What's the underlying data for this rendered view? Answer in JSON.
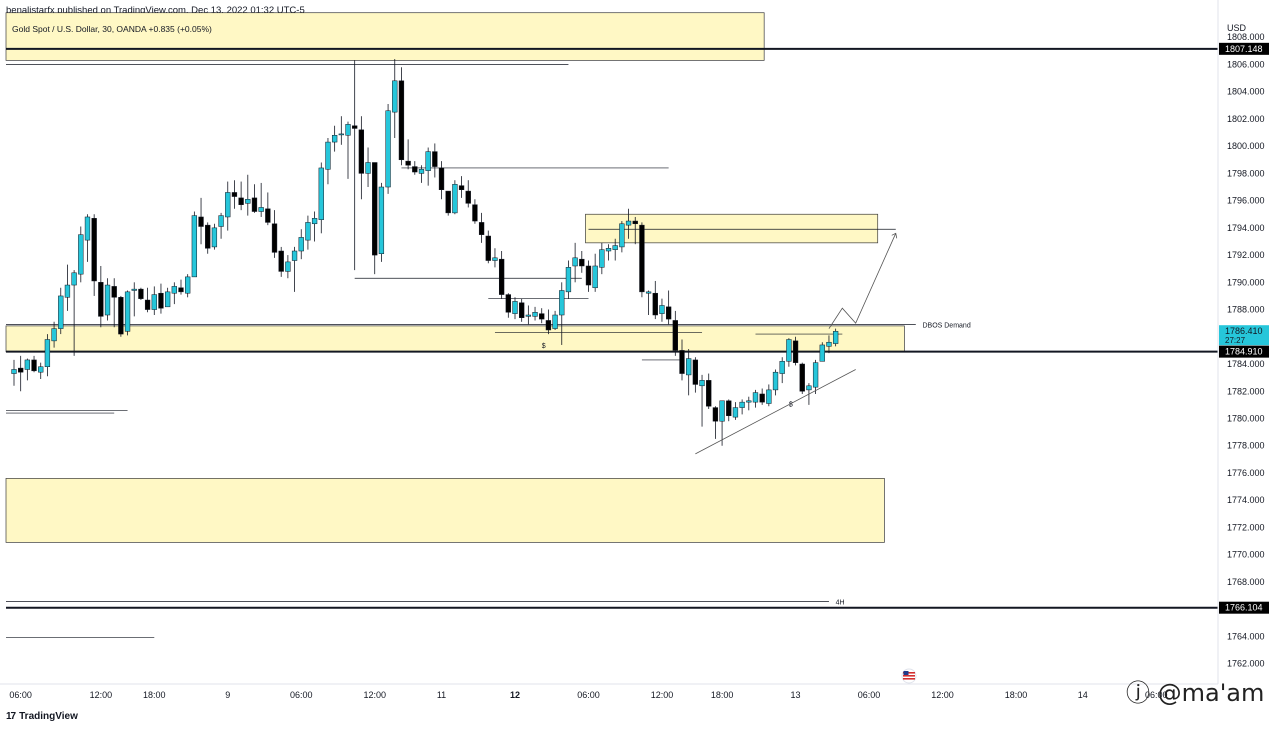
{
  "header": {
    "published_text": "benalistarfx published on TradingView.com, Dec 13, 2022 01:32 UTC-5"
  },
  "footer": {
    "logo_glyph": "17",
    "brand": "TradingView",
    "watermark": "ⓙ @ma'am",
    "flag_icon": "us-flag-icon"
  },
  "chart_data": {
    "type": "candlestick",
    "title": "Gold Spot / U.S. Dollar, 30, OANDA  +0.835 (+0.05%)",
    "currency": "USD",
    "ylim": [
      1760.5,
      1810.0
    ],
    "y_ticks": [
      "1808.000",
      "1806.000",
      "1804.000",
      "1802.000",
      "1800.000",
      "1798.000",
      "1796.000",
      "1794.000",
      "1792.000",
      "1790.000",
      "1788.000",
      "1786.000",
      "1784.000",
      "1782.000",
      "1780.000",
      "1778.000",
      "1776.000",
      "1774.000",
      "1772.000",
      "1770.000",
      "1768.000",
      "1766.000",
      "1764.000",
      "1762.000"
    ],
    "x_ticks": [
      {
        "label": "06:00",
        "i": 1,
        "bold": false
      },
      {
        "label": "12:00",
        "i": 13,
        "bold": false
      },
      {
        "label": "18:00",
        "i": 21,
        "bold": false
      },
      {
        "label": "9",
        "i": 32,
        "bold": false
      },
      {
        "label": "06:00",
        "i": 43,
        "bold": false
      },
      {
        "label": "12:00",
        "i": 54,
        "bold": false
      },
      {
        "label": "11",
        "i": 64,
        "bold": false
      },
      {
        "label": "12",
        "i": 75,
        "bold": true
      },
      {
        "label": "06:00",
        "i": 86,
        "bold": false
      },
      {
        "label": "12:00",
        "i": 97,
        "bold": false
      },
      {
        "label": "18:00",
        "i": 106,
        "bold": false
      },
      {
        "label": "13",
        "i": 117,
        "bold": false
      },
      {
        "label": "06:00",
        "i": 128,
        "bold": false
      },
      {
        "label": "12:00",
        "i": 139,
        "bold": false
      },
      {
        "label": "18:00",
        "i": 150,
        "bold": false
      },
      {
        "label": "14",
        "i": 160,
        "bold": false
      },
      {
        "label": "06:00",
        "i": 171,
        "bold": false
      }
    ],
    "price_labels": [
      {
        "label": "1807.148",
        "price": 1807.148,
        "style": "black"
      },
      {
        "label": "1786.410",
        "price": 1786.41,
        "style": "cyan",
        "sub": "27:27"
      },
      {
        "label": "1784.910",
        "price": 1784.91,
        "style": "black"
      },
      {
        "label": "1766.104",
        "price": 1766.104,
        "style": "black"
      }
    ],
    "zones": [
      {
        "name": "supply-zone-top",
        "i0": 0,
        "i1": 112,
        "top": 1809.8,
        "bottom": 1806.3
      },
      {
        "name": "supply-zone-mid",
        "i0": 86,
        "i1": 129,
        "top": 1795.0,
        "bottom": 1792.9
      },
      {
        "name": "dbos-demand-zone",
        "i0": 0,
        "i1": 133,
        "top": 1786.8,
        "bottom": 1784.9
      },
      {
        "name": "demand-zone-low",
        "i0": 0,
        "i1": 130,
        "top": 1775.6,
        "bottom": 1770.9
      }
    ],
    "horizontal_lines": [
      {
        "name": "level-1807",
        "price": 1807.148,
        "i0": 0,
        "i1": 176,
        "width": 2
      },
      {
        "name": "level-1784",
        "price": 1784.91,
        "i0": 0,
        "i1": 176,
        "width": 2
      },
      {
        "name": "level-1766",
        "price": 1766.104,
        "i0": 0,
        "i1": 176,
        "width": 2
      },
      {
        "name": "level-4h",
        "price": 1766.55,
        "i0": 0,
        "i1": 122,
        "width": 0.8
      },
      {
        "name": "dbos-line",
        "price": 1786.9,
        "i0": 0,
        "i1": 135,
        "width": 0.7
      },
      {
        "name": "line-1806",
        "price": 1806.0,
        "i0": 0,
        "i1": 83,
        "width": 0.7
      },
      {
        "name": "line-1798",
        "price": 1798.4,
        "i0": 58,
        "i1": 98,
        "width": 0.7
      },
      {
        "name": "line-1793",
        "price": 1793.9,
        "i0": 86,
        "i1": 132,
        "width": 0.7
      },
      {
        "name": "line-1791",
        "price": 1790.3,
        "i0": 51,
        "i1": 85,
        "width": 0.7
      },
      {
        "name": "line-1789",
        "price": 1788.8,
        "i0": 71,
        "i1": 86,
        "width": 0.7
      },
      {
        "name": "line-1787",
        "price": 1786.3,
        "i0": 72,
        "i1": 103,
        "width": 0.7
      },
      {
        "name": "line-1784",
        "price": 1784.3,
        "i0": 94,
        "i1": 100,
        "width": 0.7
      },
      {
        "name": "line-1786b",
        "price": 1786.2,
        "i0": 111,
        "i1": 124,
        "width": 0.7
      },
      {
        "name": "line-1781a",
        "price": 1780.6,
        "i0": 0,
        "i1": 17,
        "width": 0.7
      },
      {
        "name": "line-1781b",
        "price": 1780.4,
        "i0": 0,
        "i1": 15,
        "width": 0.7
      },
      {
        "name": "line-1763",
        "price": 1763.9,
        "i0": 0,
        "i1": 21,
        "width": 0.7
      }
    ],
    "annotations": [
      {
        "text": "DBOS Demand",
        "i": 136,
        "price": 1786.9
      },
      {
        "text": "4H",
        "i": 123,
        "price": 1766.55
      },
      {
        "text": "$",
        "i": 79,
        "price": 1785.4
      },
      {
        "text": "$",
        "i": 116,
        "price": 1781.1
      }
    ],
    "candles": [
      [
        1783.3,
        1784.3,
        1782.4,
        1783.6
      ],
      [
        1783.7,
        1784.6,
        1782.0,
        1783.4
      ],
      [
        1783.6,
        1784.4,
        1782.8,
        1784.3
      ],
      [
        1784.3,
        1784.6,
        1783.4,
        1783.5
      ],
      [
        1783.4,
        1784.1,
        1782.9,
        1783.8
      ],
      [
        1783.8,
        1786.2,
        1783.1,
        1785.8
      ],
      [
        1785.7,
        1787.1,
        1785.2,
        1786.6
      ],
      [
        1786.6,
        1789.6,
        1786.2,
        1789.0
      ],
      [
        1788.9,
        1791.3,
        1787.9,
        1789.8
      ],
      [
        1789.8,
        1790.9,
        1784.6,
        1790.7
      ],
      [
        1790.6,
        1794.1,
        1790.0,
        1793.5
      ],
      [
        1793.1,
        1795.0,
        1791.5,
        1794.8
      ],
      [
        1794.7,
        1795.0,
        1789.0,
        1790.1
      ],
      [
        1790.0,
        1791.2,
        1786.7,
        1787.5
      ],
      [
        1787.6,
        1790.3,
        1787.2,
        1789.8
      ],
      [
        1789.7,
        1790.3,
        1786.7,
        1788.9
      ],
      [
        1788.9,
        1789.0,
        1786.0,
        1786.2
      ],
      [
        1786.4,
        1789.4,
        1786.1,
        1789.3
      ],
      [
        1789.4,
        1790.0,
        1787.5,
        1789.5
      ],
      [
        1789.5,
        1789.6,
        1788.7,
        1788.8
      ],
      [
        1788.7,
        1789.6,
        1787.8,
        1788.0
      ],
      [
        1788.0,
        1789.7,
        1787.6,
        1789.1
      ],
      [
        1789.2,
        1789.9,
        1787.7,
        1788.1
      ],
      [
        1788.2,
        1789.6,
        1788.2,
        1789.3
      ],
      [
        1789.2,
        1790.0,
        1788.4,
        1789.7
      ],
      [
        1789.6,
        1790.2,
        1789.1,
        1789.3
      ],
      [
        1789.2,
        1790.6,
        1788.9,
        1790.4
      ],
      [
        1790.4,
        1795.2,
        1790.4,
        1794.9
      ],
      [
        1794.8,
        1796.2,
        1792.8,
        1794.1
      ],
      [
        1794.2,
        1794.4,
        1792.1,
        1792.5
      ],
      [
        1792.6,
        1794.3,
        1792.4,
        1794.0
      ],
      [
        1794.1,
        1795.1,
        1793.2,
        1794.9
      ],
      [
        1794.8,
        1797.4,
        1793.8,
        1796.6
      ],
      [
        1796.6,
        1797.5,
        1795.4,
        1796.3
      ],
      [
        1796.2,
        1797.4,
        1795.3,
        1795.7
      ],
      [
        1795.8,
        1797.9,
        1794.9,
        1796.1
      ],
      [
        1796.2,
        1797.2,
        1795.1,
        1795.2
      ],
      [
        1795.2,
        1797.3,
        1794.8,
        1795.5
      ],
      [
        1795.4,
        1796.6,
        1794.2,
        1794.4
      ],
      [
        1794.3,
        1795.3,
        1791.8,
        1792.2
      ],
      [
        1792.3,
        1792.6,
        1790.4,
        1790.8
      ],
      [
        1790.8,
        1792.0,
        1790.3,
        1791.5
      ],
      [
        1791.6,
        1792.6,
        1789.3,
        1792.3
      ],
      [
        1792.3,
        1793.9,
        1791.7,
        1793.3
      ],
      [
        1793.1,
        1794.9,
        1792.4,
        1794.4
      ],
      [
        1794.3,
        1795.2,
        1793.0,
        1794.7
      ],
      [
        1794.6,
        1798.8,
        1793.6,
        1798.4
      ],
      [
        1798.3,
        1800.6,
        1797.2,
        1800.3
      ],
      [
        1800.3,
        1801.5,
        1799.6,
        1800.8
      ],
      [
        1800.9,
        1802.2,
        1800.1,
        1800.9
      ],
      [
        1800.8,
        1801.8,
        1797.6,
        1801.6
      ],
      [
        1801.5,
        1806.3,
        1790.9,
        1801.3
      ],
      [
        1801.2,
        1802.2,
        1796.1,
        1798.0
      ],
      [
        1798.0,
        1799.9,
        1797.0,
        1798.8
      ],
      [
        1798.8,
        1798.6,
        1790.6,
        1792.0
      ],
      [
        1792.1,
        1797.3,
        1791.5,
        1797.0
      ],
      [
        1797.0,
        1803.1,
        1796.5,
        1802.6
      ],
      [
        1802.5,
        1806.4,
        1800.6,
        1804.8
      ],
      [
        1804.8,
        1805.8,
        1798.6,
        1799.0
      ],
      [
        1798.9,
        1800.5,
        1798.3,
        1798.6
      ],
      [
        1798.5,
        1798.9,
        1797.9,
        1798.1
      ],
      [
        1798.0,
        1798.6,
        1797.3,
        1798.3
      ],
      [
        1798.2,
        1799.9,
        1797.1,
        1799.6
      ],
      [
        1799.6,
        1800.2,
        1797.7,
        1798.5
      ],
      [
        1798.4,
        1798.9,
        1796.1,
        1796.8
      ],
      [
        1796.7,
        1796.7,
        1794.9,
        1795.1
      ],
      [
        1795.1,
        1797.5,
        1795.0,
        1797.2
      ],
      [
        1797.1,
        1797.8,
        1796.2,
        1796.8
      ],
      [
        1796.7,
        1797.5,
        1795.5,
        1795.8
      ],
      [
        1795.7,
        1796.1,
        1794.3,
        1794.5
      ],
      [
        1794.4,
        1795.1,
        1792.9,
        1793.5
      ],
      [
        1793.4,
        1793.8,
        1791.4,
        1791.6
      ],
      [
        1791.6,
        1792.5,
        1791.1,
        1791.8
      ],
      [
        1791.7,
        1792.3,
        1788.8,
        1789.1
      ],
      [
        1789.1,
        1789.2,
        1787.4,
        1787.8
      ],
      [
        1787.7,
        1788.9,
        1787.3,
        1788.6
      ],
      [
        1788.5,
        1788.8,
        1787.1,
        1787.4
      ],
      [
        1787.5,
        1788.3,
        1786.9,
        1787.6
      ],
      [
        1787.5,
        1788.2,
        1787.2,
        1787.8
      ],
      [
        1787.7,
        1788.1,
        1787.0,
        1787.3
      ],
      [
        1787.2,
        1788.0,
        1786.2,
        1786.5
      ],
      [
        1786.6,
        1787.9,
        1786.5,
        1787.6
      ],
      [
        1787.6,
        1790.0,
        1785.4,
        1789.4
      ],
      [
        1789.3,
        1791.6,
        1788.8,
        1791.1
      ],
      [
        1791.2,
        1792.9,
        1790.0,
        1791.8
      ],
      [
        1791.7,
        1792.3,
        1790.7,
        1791.2
      ],
      [
        1791.2,
        1791.6,
        1789.3,
        1789.8
      ],
      [
        1789.6,
        1792.1,
        1789.3,
        1791.2
      ],
      [
        1791.1,
        1792.9,
        1790.6,
        1792.4
      ],
      [
        1792.3,
        1792.8,
        1791.6,
        1792.5
      ],
      [
        1792.4,
        1793.2,
        1791.6,
        1792.7
      ],
      [
        1792.6,
        1794.5,
        1792.2,
        1794.3
      ],
      [
        1794.2,
        1795.4,
        1793.2,
        1794.5
      ],
      [
        1794.5,
        1794.8,
        1792.8,
        1794.3
      ],
      [
        1794.2,
        1794.4,
        1788.9,
        1789.3
      ],
      [
        1789.2,
        1789.4,
        1787.6,
        1789.3
      ],
      [
        1789.2,
        1790.1,
        1787.3,
        1787.6
      ],
      [
        1787.7,
        1788.8,
        1787.1,
        1788.3
      ],
      [
        1788.2,
        1789.4,
        1786.9,
        1787.3
      ],
      [
        1787.2,
        1787.9,
        1784.6,
        1785.0
      ],
      [
        1785.0,
        1785.8,
        1782.8,
        1783.3
      ],
      [
        1783.2,
        1785.1,
        1781.7,
        1784.4
      ],
      [
        1784.3,
        1784.5,
        1781.9,
        1782.5
      ],
      [
        1782.4,
        1783.2,
        1779.4,
        1782.8
      ],
      [
        1782.8,
        1783.3,
        1780.7,
        1780.9
      ],
      [
        1780.8,
        1780.9,
        1778.5,
        1779.8
      ],
      [
        1779.8,
        1781.1,
        1778.0,
        1781.3
      ],
      [
        1781.3,
        1781.4,
        1779.8,
        1780.2
      ],
      [
        1780.1,
        1781.2,
        1779.9,
        1780.8
      ],
      [
        1780.8,
        1781.4,
        1780.3,
        1781.2
      ],
      [
        1781.2,
        1781.6,
        1780.6,
        1781.3
      ],
      [
        1781.2,
        1782.1,
        1780.8,
        1781.9
      ],
      [
        1781.8,
        1782.2,
        1781.0,
        1781.2
      ],
      [
        1781.1,
        1782.5,
        1780.9,
        1782.1
      ],
      [
        1782.1,
        1783.6,
        1781.7,
        1783.4
      ],
      [
        1783.3,
        1784.5,
        1782.6,
        1784.2
      ],
      [
        1784.2,
        1785.9,
        1783.8,
        1785.8
      ],
      [
        1785.7,
        1786.0,
        1783.9,
        1784.1
      ],
      [
        1784.0,
        1784.1,
        1781.8,
        1782.0
      ],
      [
        1782.1,
        1782.6,
        1781.0,
        1782.4
      ],
      [
        1782.3,
        1784.3,
        1781.8,
        1784.1
      ],
      [
        1784.2,
        1785.6,
        1784.2,
        1785.4
      ],
      [
        1785.3,
        1786.1,
        1784.8,
        1785.6
      ],
      [
        1785.5,
        1786.6,
        1785.3,
        1786.4
      ]
    ],
    "projection": {
      "from_i": 122,
      "from_price": 1786.6,
      "points": [
        [
          124,
          1788.1
        ],
        [
          126,
          1787.0
        ],
        [
          132,
          1793.6
        ]
      ]
    },
    "trendline": {
      "from_i": 102,
      "from_price": 1777.4,
      "to_i": 126,
      "to_price": 1783.6
    }
  }
}
